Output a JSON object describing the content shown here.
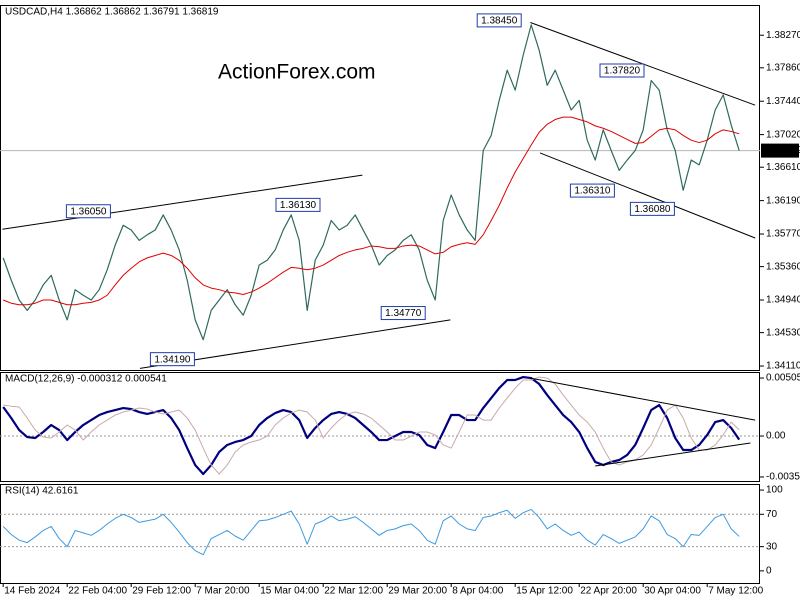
{
  "chart_data": [
    {
      "type": "line",
      "title": "USDCAD,H4 1.36862 1.36862 1.36791 1.36819",
      "watermark": "ActionForex.com",
      "x": [
        0,
        1,
        2,
        3,
        4,
        5,
        6,
        7,
        8,
        9,
        10,
        11,
        12,
        13,
        14,
        15,
        16,
        17,
        18,
        19,
        20,
        21,
        22,
        23,
        24,
        25,
        26,
        27,
        28,
        29,
        30,
        31,
        32,
        33,
        34,
        35,
        36,
        37,
        38,
        39,
        40,
        41,
        42,
        43,
        44,
        45,
        46,
        47,
        48,
        49,
        50,
        51,
        52,
        53,
        54,
        55,
        56,
        57,
        58,
        59,
        60,
        61,
        62,
        63,
        64,
        65,
        66,
        67,
        68,
        69,
        70,
        71,
        72,
        73,
        74,
        75,
        76,
        77,
        78,
        79,
        80,
        81,
        82,
        83,
        84,
        85,
        86,
        87,
        88,
        89,
        90,
        91,
        92
      ],
      "xlim": [
        -0.4,
        94.6
      ],
      "ylim": [
        1.3406,
        1.3865
      ],
      "yticks": [
        {
          "value": 1.3827,
          "label": "1.38270"
        },
        {
          "value": 1.3786,
          "label": "1.37860"
        },
        {
          "value": 1.3744,
          "label": "1.37440"
        },
        {
          "value": 1.3702,
          "label": "1.37020"
        },
        {
          "value": 1.3661,
          "label": "1.36610"
        },
        {
          "value": 1.3619,
          "label": "1.36190"
        },
        {
          "value": 1.3577,
          "label": "1.35770"
        },
        {
          "value": 1.3536,
          "label": "1.35360"
        },
        {
          "value": 1.3494,
          "label": "1.34940"
        },
        {
          "value": 1.3453,
          "label": "1.34530"
        },
        {
          "value": 1.3411,
          "label": "1.34110"
        }
      ],
      "series": [
        {
          "color": "#2e6a5f",
          "width": 1.2,
          "values": [
            1.3547,
            1.3519,
            1.3494,
            1.3481,
            1.3494,
            1.3513,
            1.3525,
            1.3494,
            1.3469,
            1.3507,
            1.35,
            1.3494,
            1.3507,
            1.3532,
            1.3563,
            1.3588,
            1.3582,
            1.3569,
            1.3576,
            1.3582,
            1.3601,
            1.3582,
            1.3557,
            1.3519,
            1.3469,
            1.3444,
            1.3481,
            1.3494,
            1.3507,
            1.3488,
            1.3475,
            1.35,
            1.3538,
            1.3544,
            1.3557,
            1.3582,
            1.3601,
            1.3569,
            1.3481,
            1.3544,
            1.3563,
            1.3594,
            1.3582,
            1.3588,
            1.3601,
            1.3582,
            1.3563,
            1.3538,
            1.355,
            1.3557,
            1.3569,
            1.3576,
            1.3557,
            1.3519,
            1.3494,
            1.3594,
            1.3626,
            1.3601,
            1.3582,
            1.3569,
            1.3682,
            1.3701,
            1.3745,
            1.3783,
            1.3758,
            1.3802,
            1.384,
            1.3808,
            1.3764,
            1.3783,
            1.3758,
            1.3733,
            1.3745,
            1.3695,
            1.367,
            1.3708,
            1.3682,
            1.3657,
            1.367,
            1.3682,
            1.3708,
            1.377,
            1.3758,
            1.3708,
            1.3682,
            1.3632,
            1.367,
            1.3664,
            1.3695,
            1.3733,
            1.3752,
            1.3714,
            1.3682
          ]
        },
        {
          "color": "#e00000",
          "width": 1,
          "values": [
            1.3494,
            1.349,
            1.3488,
            1.3488,
            1.349,
            1.3494,
            1.3494,
            1.3491,
            1.3488,
            1.3488,
            1.349,
            1.3491,
            1.3494,
            1.35,
            1.3513,
            1.3525,
            1.3534,
            1.3542,
            1.3547,
            1.355,
            1.3553,
            1.355,
            1.3544,
            1.3534,
            1.3522,
            1.3513,
            1.3509,
            1.3507,
            1.3504,
            1.3503,
            1.3501,
            1.3504,
            1.3509,
            1.3515,
            1.3522,
            1.3529,
            1.3535,
            1.3534,
            1.3532,
            1.3534,
            1.3538,
            1.3544,
            1.355,
            1.3554,
            1.3557,
            1.3559,
            1.3562,
            1.3561,
            1.3559,
            1.3559,
            1.3562,
            1.3563,
            1.3562,
            1.3557,
            1.3552,
            1.3554,
            1.3561,
            1.3564,
            1.3566,
            1.3564,
            1.3576,
            1.3594,
            1.3613,
            1.3635,
            1.3655,
            1.3672,
            1.3689,
            1.3705,
            1.3715,
            1.3721,
            1.3724,
            1.3724,
            1.3721,
            1.3718,
            1.3713,
            1.371,
            1.3706,
            1.3701,
            1.3696,
            1.3691,
            1.3692,
            1.37,
            1.3708,
            1.371,
            1.3708,
            1.3701,
            1.3695,
            1.3692,
            1.3695,
            1.3703,
            1.3708,
            1.3706,
            1.3703
          ]
        }
      ],
      "trendlines": [
        {
          "x": [
            -0.1,
            44.9
          ],
          "y": [
            1.3583,
            1.3651
          ]
        },
        {
          "x": [
            17.1,
            55.9
          ],
          "y": [
            1.3408,
            1.3469
          ]
        },
        {
          "x": [
            65.9,
            94.0
          ],
          "y": [
            1.3843,
            1.3739
          ]
        },
        {
          "x": [
            67.1,
            94.0
          ],
          "y": [
            1.3679,
            1.3572
          ]
        }
      ],
      "annotations": [
        {
          "x": 13.4,
          "value": 1.3605,
          "label": "1.36050"
        },
        {
          "x": 39.6,
          "value": 1.3613,
          "label": "1.36130"
        },
        {
          "x": 23.9,
          "value": 1.3419,
          "label": "1.34190"
        },
        {
          "x": 52.75,
          "value": 1.3477,
          "label": "1.34770"
        },
        {
          "x": 64.75,
          "value": 1.3845,
          "label": "1.38450"
        },
        {
          "x": 80.1,
          "value": 1.3782,
          "label": "1.37820"
        },
        {
          "x": 76.4,
          "value": 1.3631,
          "label": "1.36310"
        },
        {
          "x": 83.9,
          "value": 1.3608,
          "label": "1.36080"
        }
      ],
      "last_price": {
        "value": 1.36819,
        "label": "1.36819"
      }
    },
    {
      "type": "line",
      "title": "MACD(12,26,9) -0.000312 0.000541",
      "ylim": [
        -0.00392,
        0.00558
      ],
      "yticks": [
        0.005054,
        {
          "value": 0,
          "label": "0.00"
        },
        -0.003569
      ],
      "levels": [
        0
      ],
      "series": [
        {
          "color": "#000080",
          "width": 2.2,
          "values": [
            0.00253,
            0.00157,
            0.00052,
            -9e-05,
            -0.00017,
            0.00035,
            0.00096,
            0.00052,
            -0.00035,
            0.00035,
            0.00096,
            0.00139,
            0.00183,
            0.00209,
            0.00226,
            0.00244,
            0.00235,
            0.00209,
            0.00192,
            0.00209,
            0.00226,
            0.00157,
            0.00052,
            -0.00105,
            -0.00253,
            -0.00331,
            -0.00253,
            -0.00139,
            -0.00078,
            -0.00052,
            -0.00035,
            0,
            0.00096,
            0.00157,
            0.002,
            0.00226,
            0.00209,
            0.00139,
            -0.00017,
            0.0007,
            0.00139,
            0.00192,
            0.00209,
            0.00192,
            0.00157,
            0.00096,
            0.00035,
            -0.00035,
            -0.00035,
            0,
            0.00035,
            0.00035,
            9e-05,
            -0.00078,
            -0.00105,
            0.00035,
            0.00183,
            0.00183,
            0.00139,
            0.00139,
            0.00244,
            0.00331,
            0.00418,
            0.00488,
            0.00488,
            0.00514,
            0.00505,
            0.00453,
            0.00357,
            0.0027,
            0.00183,
            0.00122,
            0.00035,
            -0.00105,
            -0.00226,
            -0.00253,
            -0.00226,
            -0.00209,
            -0.00165,
            -0.00078,
            0.0007,
            0.00226,
            0.0027,
            0.00157,
            -0.00017,
            -0.00122,
            -0.00122,
            -0.00078,
            9e-05,
            0.00122,
            0.00139,
            0.0007,
            -0.00031
          ]
        },
        {
          "color": "#c9a9a9",
          "width": 1,
          "values": [
            0.0027,
            0.0026,
            0.00253,
            0.00157,
            0.00052,
            -9e-05,
            -0.00017,
            0.00035,
            0.00096,
            0.00052,
            -0.00035,
            0.00035,
            0.00096,
            0.00139,
            0.00183,
            0.00209,
            0.00226,
            0.00244,
            0.00235,
            0.00209,
            0.00192,
            0.00209,
            0.00226,
            0.00157,
            0.00052,
            -0.00105,
            -0.00253,
            -0.00331,
            -0.00253,
            -0.00139,
            -0.00078,
            -0.00052,
            -0.00035,
            0,
            0.00096,
            0.00157,
            0.002,
            0.00226,
            0.00209,
            0.00139,
            -0.00017,
            0.0007,
            0.00139,
            0.00192,
            0.00209,
            0.00192,
            0.00157,
            0.00096,
            0.00035,
            -0.00035,
            -0.00035,
            0,
            0.00035,
            0.00035,
            9e-05,
            -0.00078,
            -0.00105,
            0.00035,
            0.00183,
            0.00183,
            0.00139,
            0.00139,
            0.00244,
            0.00331,
            0.00418,
            0.00488,
            0.00488,
            0.00514,
            0.00505,
            0.00453,
            0.00357,
            0.0027,
            0.00183,
            0.00122,
            0.00035,
            -0.00105,
            -0.00226,
            -0.00253,
            -0.00226,
            -0.00209,
            -0.00165,
            -0.00078,
            0.0007,
            0.00226,
            0.0027,
            0.00157,
            -0.00017,
            -0.00122,
            -0.00122,
            -0.00078,
            9e-05,
            0.00122,
            0.00054
          ]
        }
      ],
      "trendlines": [
        {
          "x": [
            65.9,
            94.0
          ],
          "y": [
            0.00505,
            0.00139
          ]
        },
        {
          "x": [
            74.0,
            93.4
          ],
          "y": [
            -0.00261,
            -0.00061
          ]
        }
      ]
    },
    {
      "type": "line",
      "title": "RSI(14) 42.6161",
      "ylim": [
        -15,
        107.5
      ],
      "yticks": [
        100,
        70,
        30,
        0
      ],
      "levels": [
        70,
        30
      ],
      "xticks": [
        {
          "value": 0,
          "label": "14 Feb 2024"
        },
        {
          "value": 8,
          "label": "22 Feb 04:00"
        },
        {
          "value": 16,
          "label": "29 Feb 12:00"
        },
        {
          "value": 24,
          "label": "7 Mar 20:00"
        },
        {
          "value": 32,
          "label": "15 Mar 04:00"
        },
        {
          "value": 40,
          "label": "22 Mar 12:00"
        },
        {
          "value": 48,
          "label": "29 Mar 20:00"
        },
        {
          "value": 56,
          "label": "8 Apr 04:00"
        },
        {
          "value": 64,
          "label": "15 Apr 12:00"
        },
        {
          "value": 72,
          "label": "22 Apr 20:00"
        },
        {
          "value": 80,
          "label": "30 Apr 04:00"
        },
        {
          "value": 88,
          "label": "7 May 12:00"
        }
      ],
      "series": [
        {
          "color": "#3d9be0",
          "width": 1,
          "values": [
            55,
            45,
            38,
            35,
            42,
            50,
            55,
            40,
            30,
            50,
            47,
            44,
            50,
            58,
            65,
            70,
            66,
            60,
            62,
            64,
            70,
            60,
            48,
            35,
            25,
            20,
            40,
            45,
            50,
            43,
            38,
            50,
            62,
            63,
            66,
            70,
            74,
            58,
            33,
            58,
            62,
            68,
            62,
            64,
            67,
            60,
            52,
            44,
            50,
            52,
            56,
            58,
            50,
            38,
            33,
            62,
            68,
            58,
            52,
            50,
            66,
            68,
            72,
            75,
            65,
            72,
            76,
            66,
            52,
            58,
            50,
            44,
            48,
            38,
            32,
            45,
            40,
            34,
            38,
            42,
            52,
            68,
            62,
            45,
            40,
            30,
            45,
            44,
            55,
            66,
            70,
            52,
            42.6161
          ]
        }
      ]
    }
  ]
}
